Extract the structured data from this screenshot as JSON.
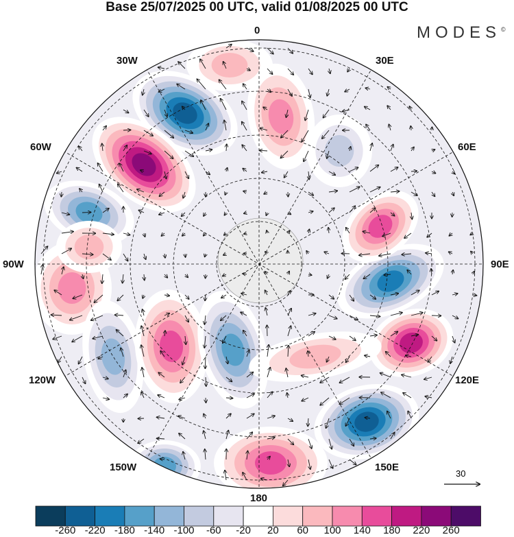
{
  "title": "Base 25/07/2025 00 UTC, valid 01/08/2025 00 UTC",
  "logo": "MODES",
  "longitude_labels": {
    "lon0": "0",
    "lon30e": "30E",
    "lon60e": "60E",
    "lon90e": "90E",
    "lon120e": "120E",
    "lon150e": "150E",
    "lon180": "180",
    "lon150w": "150W",
    "lon120w": "120W",
    "lon90w": "90W",
    "lon60w": "60W",
    "lon30w": "30W"
  },
  "reference_vector": "30",
  "colorbar": {
    "labels": [
      "-260",
      "-220",
      "-180",
      "-140",
      "-100",
      "-60",
      "-20",
      "20",
      "60",
      "100",
      "140",
      "180",
      "220",
      "260"
    ],
    "colors": [
      "#0b3d5c",
      "#0f5f94",
      "#1a7db6",
      "#56a0c9",
      "#93b6d8",
      "#c3cbe0",
      "#e7e5f0",
      "#ffffff",
      "#fcdcdc",
      "#fbb9be",
      "#f78bae",
      "#e84c9b",
      "#bf1a82",
      "#8b0a78",
      "#4d0c68"
    ]
  }
}
